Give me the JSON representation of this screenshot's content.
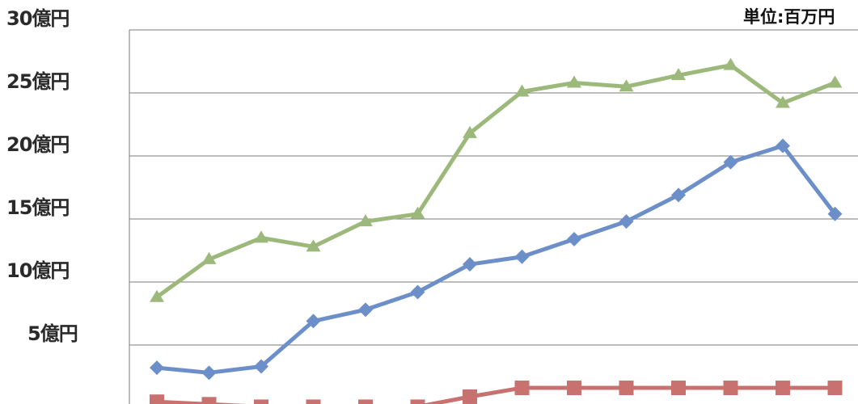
{
  "chart_data": {
    "type": "line",
    "title": "",
    "xlabel": "",
    "ylabel": "",
    "unit_label": "単位:百万円",
    "ylim": [
      0,
      30
    ],
    "y_ticks": [
      {
        "value": 30,
        "label": "30億円"
      },
      {
        "value": 25,
        "label": "25億円"
      },
      {
        "value": 20,
        "label": "20億円"
      },
      {
        "value": 15,
        "label": "15億円"
      },
      {
        "value": 10,
        "label": "10億円"
      },
      {
        "value": 5,
        "label": "5億円"
      }
    ],
    "grid": true,
    "x": [
      1,
      2,
      3,
      4,
      5,
      6,
      7,
      8,
      9,
      10,
      11,
      12,
      13,
      14
    ],
    "series": [
      {
        "marker": "triangle",
        "color": "#9cb97b",
        "values": [
          8.8,
          11.8,
          13.5,
          12.8,
          14.8,
          15.4,
          21.8,
          25.1,
          25.8,
          25.5,
          26.4,
          27.2,
          24.2,
          25.8
        ]
      },
      {
        "marker": "diamond",
        "color": "#6d8fc9",
        "values": [
          3.2,
          2.8,
          3.3,
          6.9,
          7.8,
          9.2,
          11.4,
          12.0,
          13.4,
          14.8,
          16.9,
          19.5,
          20.8,
          15.4
        ]
      },
      {
        "marker": "square",
        "color": "#c9716f",
        "values": [
          0.5,
          0.3,
          0.1,
          0.1,
          0.1,
          0.1,
          0.9,
          1.6,
          1.6,
          1.6,
          1.6,
          1.6,
          1.6,
          1.6
        ]
      }
    ]
  }
}
